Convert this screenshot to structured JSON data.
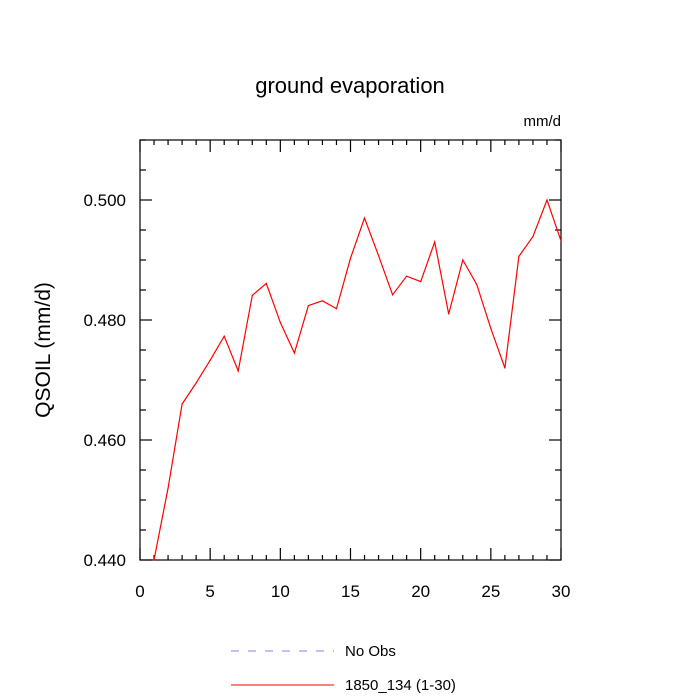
{
  "chart_data": {
    "type": "line",
    "title": "ground evaporation",
    "units": "mm/d",
    "xlabel": "",
    "ylabel": "QSOIL  (mm/d)",
    "xlim": [
      0,
      30
    ],
    "ylim": [
      0.44,
      0.51
    ],
    "xticks": [
      0,
      5,
      10,
      15,
      20,
      25,
      30
    ],
    "xtick_labels": [
      "0",
      "5",
      "10",
      "15",
      "20",
      "25",
      "30"
    ],
    "yticks": [
      0.44,
      0.46,
      0.48,
      0.5
    ],
    "ytick_labels": [
      "0.440",
      "0.460",
      "0.480",
      "0.500"
    ],
    "grid": false,
    "legend_position": "bottom",
    "series": [
      {
        "name": "No Obs",
        "color": "#8080ff",
        "dash": "dashed",
        "x": [],
        "y": []
      },
      {
        "name": "1850_134 (1-30)",
        "color": "#ff0000",
        "dash": "solid",
        "x": [
          1,
          2,
          3,
          4,
          5,
          6,
          7,
          8,
          9,
          10,
          11,
          12,
          13,
          14,
          15,
          16,
          17,
          18,
          19,
          20,
          21,
          22,
          23,
          24,
          25,
          26,
          27,
          28,
          29,
          30
        ],
        "y": [
          0.44,
          0.452,
          0.466,
          0.4695,
          0.4733,
          0.4773,
          0.4715,
          0.4841,
          0.4861,
          0.4796,
          0.4745,
          0.4824,
          0.4832,
          0.4819,
          0.4903,
          0.497,
          0.4907,
          0.4842,
          0.4873,
          0.4864,
          0.493,
          0.481,
          0.49,
          0.4859,
          0.4786,
          0.472,
          0.4906,
          0.4939,
          0.5,
          0.4932
        ]
      }
    ]
  }
}
